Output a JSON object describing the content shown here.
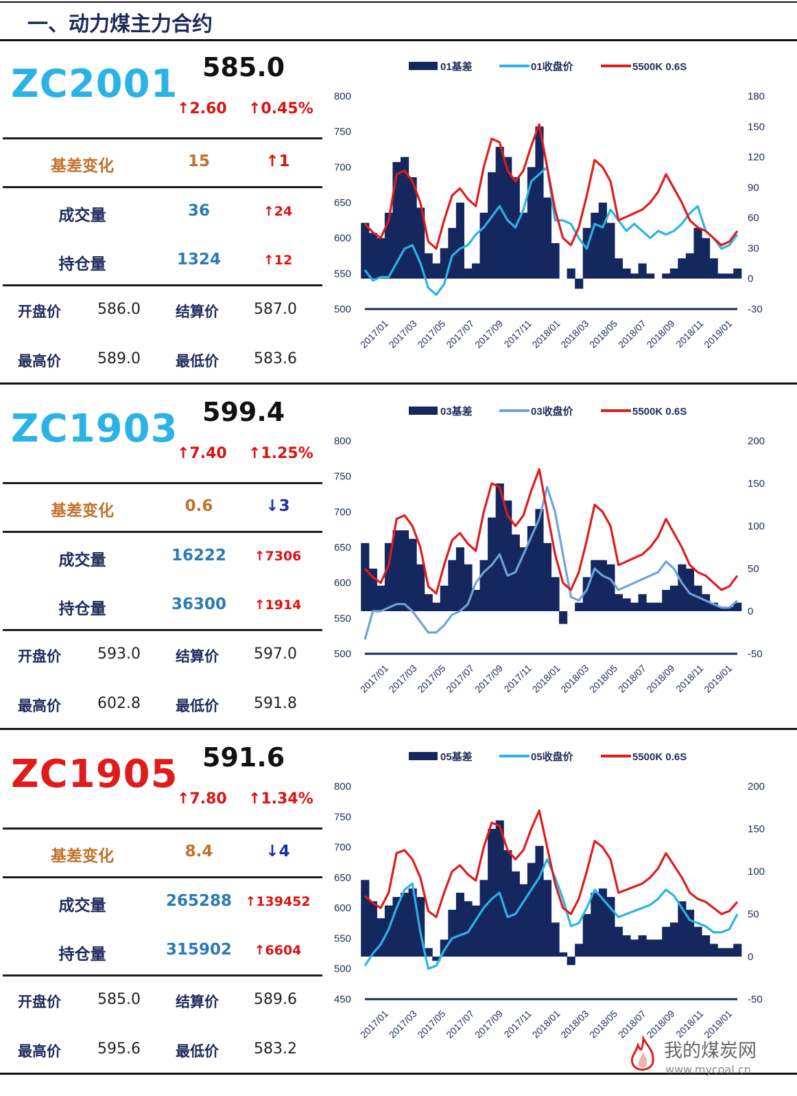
{
  "page": {
    "title": "一、动力煤主力合约"
  },
  "labels": {
    "basis_change": "基差变化",
    "volume": "成交量",
    "open_interest": "持仓量",
    "open": "开盘价",
    "settle": "结算价",
    "high": "最高价",
    "low": "最低价"
  },
  "contracts": [
    {
      "code": "ZC2001",
      "code_color": "#2bb3e6",
      "price": "585.0",
      "change": "↑2.60",
      "change_pct": "↑0.45%",
      "basis_change": "15",
      "basis_arrow": "↑1",
      "volume": "36",
      "volume_arrow": "↑24",
      "oi": "1324",
      "oi_arrow": "↑12",
      "open": "586.0",
      "settle": "587.0",
      "high": "589.0",
      "low": "583.6"
    },
    {
      "code": "ZC1903",
      "code_color": "#2bb3e6",
      "price": "599.4",
      "change": "↑7.40",
      "change_pct": "↑1.25%",
      "basis_change": "0.6",
      "basis_arrow": "↓3",
      "volume": "16222",
      "volume_arrow": "↑7306",
      "oi": "36300",
      "oi_arrow": "↑1914",
      "open": "593.0",
      "settle": "597.0",
      "high": "602.8",
      "low": "591.8"
    },
    {
      "code": "ZC1905",
      "code_color": "#e01b1b",
      "price": "591.6",
      "change": "↑7.80",
      "change_pct": "↑1.34%",
      "basis_change": "8.4",
      "basis_arrow": "↓4",
      "volume": "265288",
      "volume_arrow": "↑139452",
      "oi": "315902",
      "oi_arrow": "↑6604",
      "open": "585.0",
      "settle": "589.6",
      "high": "595.6",
      "low": "583.2"
    }
  ],
  "chart_data": [
    {
      "type": "area",
      "title": "",
      "x_ticks": [
        "2017/01",
        "2017/03",
        "2017/05",
        "2017/07",
        "2017/09",
        "2017/11",
        "2018/01",
        "2018/03",
        "2018/05",
        "2018/07",
        "2018/09",
        "2018/11",
        "2019/01"
      ],
      "y_left": {
        "ticks": [
          800,
          750,
          700,
          650,
          600,
          550,
          500
        ],
        "range": [
          500,
          800
        ]
      },
      "y_right": {
        "ticks": [
          180,
          150,
          120,
          90,
          60,
          30,
          0,
          -30
        ],
        "range": [
          -30,
          180
        ]
      },
      "legend_position": "top",
      "series": [
        {
          "name": "01基差",
          "axis": "right",
          "kind": "area",
          "color": "#14275e",
          "values": [
            55,
            45,
            40,
            65,
            115,
            120,
            100,
            70,
            25,
            15,
            30,
            50,
            75,
            10,
            15,
            65,
            105,
            130,
            120,
            100,
            65,
            110,
            150,
            80,
            35,
            0,
            10,
            -10,
            50,
            65,
            75,
            55,
            20,
            10,
            5,
            15,
            5,
            0,
            5,
            10,
            20,
            25,
            50,
            40,
            20,
            5,
            5,
            10
          ]
        },
        {
          "name": "01收盘价",
          "axis": "left",
          "kind": "line",
          "color": "#2bb3e6",
          "values": [
            555,
            540,
            545,
            545,
            565,
            585,
            590,
            565,
            530,
            520,
            535,
            575,
            585,
            590,
            605,
            615,
            630,
            645,
            625,
            615,
            640,
            680,
            690,
            700,
            625,
            625,
            620,
            600,
            585,
            620,
            615,
            640,
            625,
            610,
            620,
            610,
            600,
            610,
            605,
            610,
            620,
            635,
            645,
            610,
            600,
            585,
            590,
            605
          ]
        },
        {
          "name": "5500K 0.6S",
          "axis": "left",
          "kind": "line",
          "color": "#e01b1b",
          "values": [
            620,
            608,
            600,
            625,
            690,
            695,
            680,
            650,
            595,
            585,
            625,
            660,
            670,
            655,
            645,
            700,
            740,
            735,
            695,
            680,
            695,
            730,
            760,
            700,
            640,
            600,
            590,
            615,
            660,
            710,
            700,
            680,
            625,
            630,
            635,
            640,
            650,
            665,
            690,
            670,
            650,
            625,
            615,
            610,
            600,
            590,
            595,
            610
          ]
        }
      ]
    },
    {
      "type": "area",
      "title": "",
      "x_ticks": [
        "2017/01",
        "2017/03",
        "2017/05",
        "2017/07",
        "2017/09",
        "2017/11",
        "2018/01",
        "2018/03",
        "2018/05",
        "2018/07",
        "2018/09",
        "2018/11",
        "2019/01"
      ],
      "y_left": {
        "ticks": [
          800,
          750,
          700,
          650,
          600,
          550,
          500
        ],
        "range": [
          500,
          800
        ]
      },
      "y_right": {
        "ticks": [
          200,
          150,
          100,
          50,
          0,
          -50
        ],
        "range": [
          -50,
          200
        ]
      },
      "legend_position": "top",
      "series": [
        {
          "name": "03基差",
          "axis": "right",
          "kind": "area",
          "color": "#14275e",
          "values": [
            80,
            50,
            30,
            80,
            95,
            95,
            85,
            55,
            20,
            10,
            30,
            60,
            75,
            55,
            25,
            60,
            110,
            150,
            130,
            90,
            75,
            100,
            120,
            80,
            40,
            -15,
            0,
            10,
            40,
            60,
            60,
            55,
            20,
            15,
            10,
            20,
            10,
            10,
            25,
            30,
            55,
            50,
            30,
            20,
            10,
            5,
            5,
            10
          ]
        },
        {
          "name": "03收盘价",
          "axis": "left",
          "kind": "line",
          "color": "#6ea3d8",
          "values": [
            520,
            560,
            560,
            565,
            570,
            570,
            560,
            545,
            530,
            530,
            540,
            555,
            560,
            570,
            600,
            615,
            625,
            640,
            610,
            615,
            640,
            665,
            690,
            735,
            700,
            640,
            580,
            575,
            590,
            620,
            610,
            605,
            590,
            595,
            600,
            605,
            610,
            615,
            630,
            620,
            600,
            585,
            580,
            575,
            570,
            565,
            565,
            575
          ]
        },
        {
          "name": "5500K 0.6S",
          "axis": "left",
          "kind": "line",
          "color": "#e01b1b",
          "values": [
            620,
            608,
            600,
            625,
            690,
            695,
            680,
            650,
            595,
            585,
            625,
            660,
            670,
            655,
            645,
            700,
            740,
            735,
            695,
            680,
            695,
            730,
            760,
            700,
            640,
            600,
            590,
            615,
            660,
            710,
            700,
            680,
            625,
            630,
            635,
            640,
            650,
            665,
            690,
            670,
            650,
            625,
            615,
            610,
            600,
            590,
            595,
            610
          ]
        }
      ]
    },
    {
      "type": "area",
      "title": "",
      "x_ticks": [
        "2017/01",
        "2017/03",
        "2017/05",
        "2017/07",
        "2017/09",
        "2017/11",
        "2018/01",
        "2018/03",
        "2018/05",
        "2018/07",
        "2018/09",
        "2018/11",
        "2019/01"
      ],
      "y_left": {
        "ticks": [
          800,
          750,
          700,
          650,
          600,
          550,
          500,
          450
        ],
        "range": [
          450,
          800
        ]
      },
      "y_right": {
        "ticks": [
          200,
          150,
          100,
          50,
          0,
          -50
        ],
        "range": [
          -50,
          200
        ]
      },
      "legend_position": "top",
      "series": [
        {
          "name": "05基差",
          "axis": "right",
          "kind": "area",
          "color": "#14275e",
          "values": [
            90,
            65,
            45,
            60,
            70,
            75,
            80,
            70,
            10,
            -5,
            20,
            55,
            75,
            65,
            60,
            90,
            150,
            160,
            125,
            100,
            85,
            110,
            130,
            90,
            40,
            5,
            -10,
            15,
            50,
            75,
            80,
            70,
            35,
            25,
            20,
            25,
            20,
            20,
            35,
            40,
            65,
            55,
            35,
            25,
            15,
            10,
            10,
            15
          ]
        },
        {
          "name": "05收盘价",
          "axis": "left",
          "kind": "line",
          "color": "#2bb3e6",
          "values": [
            505,
            525,
            540,
            565,
            600,
            630,
            640,
            560,
            500,
            505,
            530,
            550,
            555,
            560,
            580,
            600,
            615,
            625,
            585,
            590,
            610,
            630,
            650,
            680,
            650,
            615,
            570,
            575,
            600,
            630,
            615,
            600,
            585,
            590,
            595,
            600,
            605,
            615,
            630,
            620,
            600,
            580,
            575,
            570,
            560,
            560,
            565,
            590
          ]
        },
        {
          "name": "5500K 0.6S",
          "axis": "left",
          "kind": "line",
          "color": "#e01b1b",
          "values": [
            620,
            608,
            600,
            625,
            690,
            695,
            680,
            650,
            595,
            585,
            625,
            660,
            670,
            655,
            645,
            700,
            740,
            735,
            695,
            680,
            695,
            730,
            760,
            700,
            640,
            600,
            590,
            615,
            660,
            710,
            700,
            680,
            625,
            630,
            635,
            640,
            650,
            665,
            690,
            670,
            650,
            625,
            615,
            610,
            600,
            590,
            595,
            610
          ]
        }
      ]
    }
  ],
  "watermark": {
    "logo_text": "我的煤炭网",
    "url": "www.mycoal.cn"
  }
}
